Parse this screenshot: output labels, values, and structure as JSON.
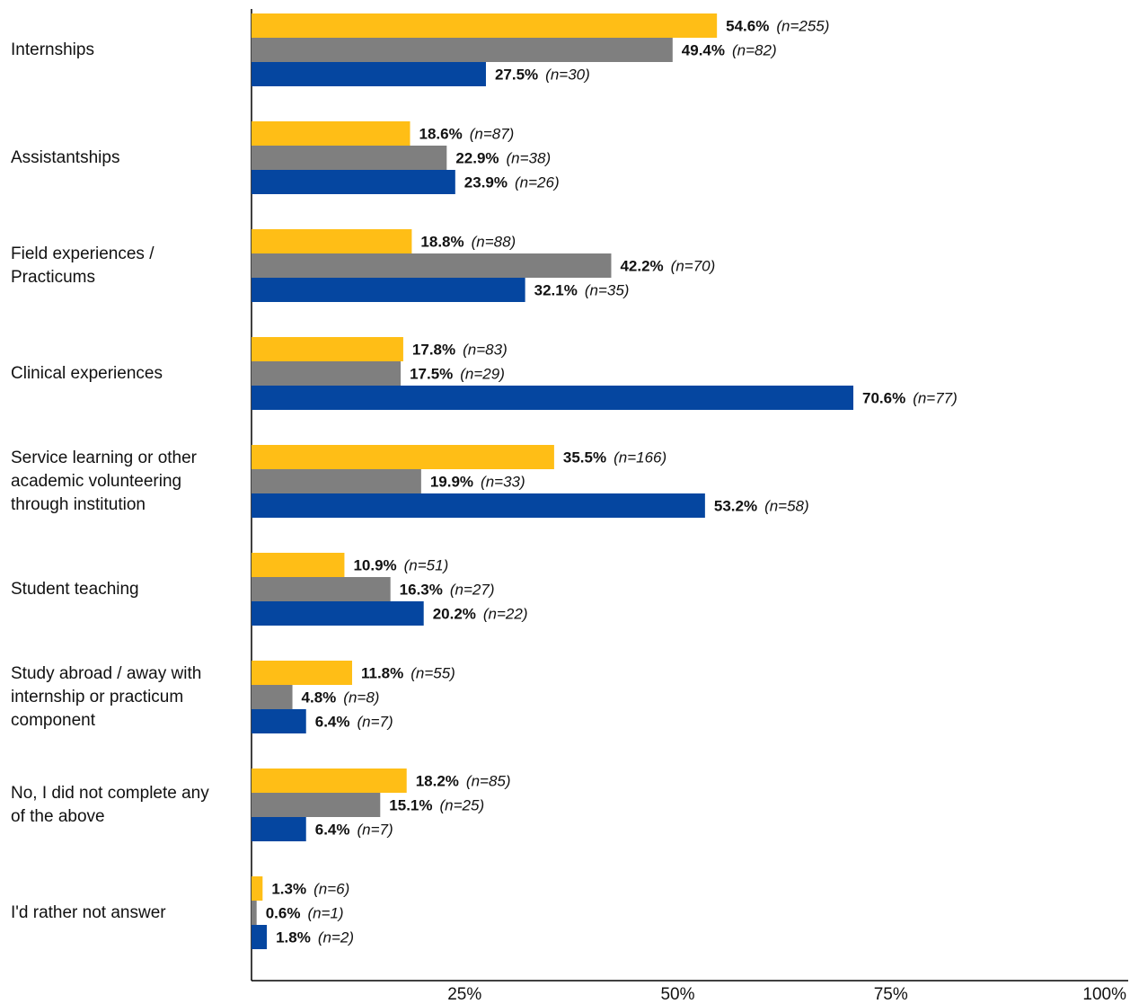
{
  "chart_data": {
    "type": "bar",
    "orientation": "horizontal",
    "title": "",
    "xlabel": "",
    "ylabel": "",
    "xlim": [
      0,
      100
    ],
    "x_ticks": [
      "25%",
      "50%",
      "75%",
      "100%"
    ],
    "x_tick_values": [
      25,
      50,
      75,
      100
    ],
    "grid": false,
    "legend": "none",
    "categories": [
      "Internships",
      "Assistantships",
      "Field experiences / Practicums",
      "Clinical experiences",
      "Service learning or other academic volunteering through institution",
      "Student teaching",
      "Study abroad / away with internship or practicum component",
      "No, I did not complete any of the above",
      "I'd rather not answer"
    ],
    "category_lines": [
      [
        "Internships"
      ],
      [
        "Assistantships"
      ],
      [
        "Field experiences /",
        "Practicums"
      ],
      [
        "Clinical experiences"
      ],
      [
        "Service learning or other",
        "academic volunteering",
        "through institution"
      ],
      [
        "Student teaching"
      ],
      [
        "Study abroad / away with",
        "internship or practicum",
        "component"
      ],
      [
        "No, I did not complete any",
        "of the above"
      ],
      [
        "I'd rather not answer"
      ]
    ],
    "series": [
      {
        "color": "#FFBE16",
        "values": [
          54.6,
          18.6,
          18.8,
          17.8,
          35.5,
          10.9,
          11.8,
          18.2,
          1.3
        ],
        "value_labels": [
          "54.6%",
          "18.6%",
          "18.8%",
          "17.8%",
          "35.5%",
          "10.9%",
          "11.8%",
          "18.2%",
          "1.3%"
        ],
        "n_labels": [
          "(n=255)",
          "(n=87)",
          "(n=88)",
          "(n=83)",
          "(n=166)",
          "(n=51)",
          "(n=55)",
          "(n=85)",
          "(n=6)"
        ]
      },
      {
        "color": "#7F7F7F",
        "values": [
          49.4,
          22.9,
          42.2,
          17.5,
          19.9,
          16.3,
          4.8,
          15.1,
          0.6
        ],
        "value_labels": [
          "49.4%",
          "22.9%",
          "42.2%",
          "17.5%",
          "19.9%",
          "16.3%",
          "4.8%",
          "15.1%",
          "0.6%"
        ],
        "n_labels": [
          "(n=82)",
          "(n=38)",
          "(n=70)",
          "(n=29)",
          "(n=33)",
          "(n=27)",
          "(n=8)",
          "(n=25)",
          "(n=1)"
        ]
      },
      {
        "color": "#0546A0",
        "values": [
          27.5,
          23.9,
          32.1,
          70.6,
          53.2,
          20.2,
          6.4,
          6.4,
          1.8
        ],
        "value_labels": [
          "27.5%",
          "23.9%",
          "32.1%",
          "70.6%",
          "53.2%",
          "20.2%",
          "6.4%",
          "6.4%",
          "1.8%"
        ],
        "n_labels": [
          "(n=30)",
          "(n=26)",
          "(n=35)",
          "(n=77)",
          "(n=58)",
          "(n=22)",
          "(n=7)",
          "(n=7)",
          "(n=2)"
        ]
      }
    ]
  }
}
